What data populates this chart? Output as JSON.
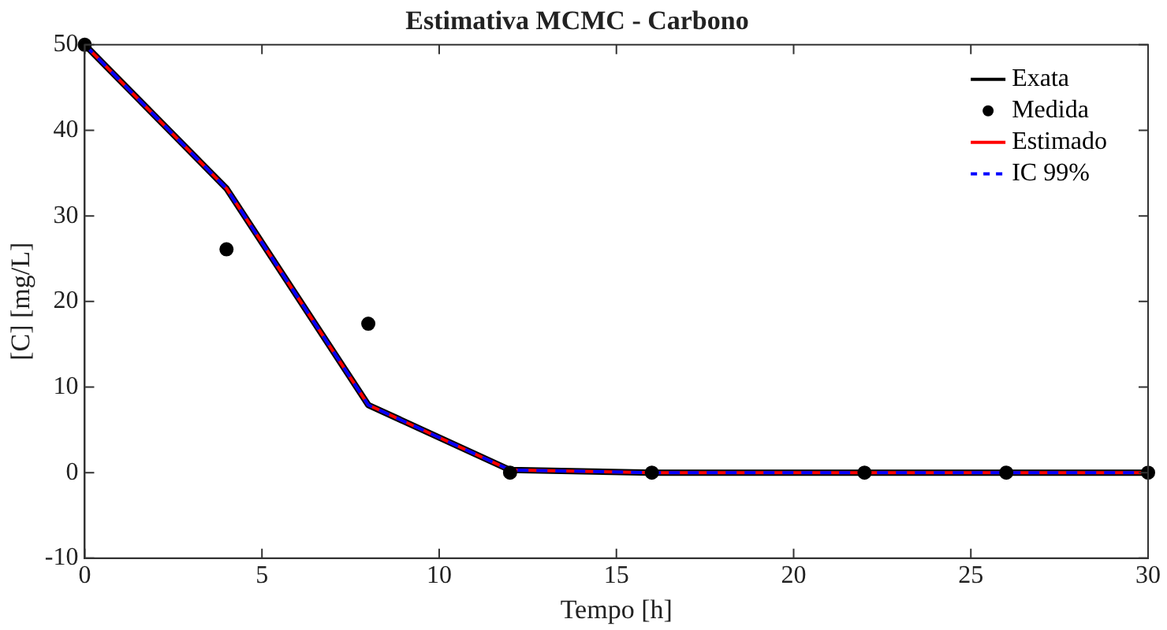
{
  "chart_data": {
    "type": "line",
    "title": "Estimativa MCMC - Carbono",
    "xlabel": "Tempo [h]",
    "ylabel": "[C] [mg/L]",
    "x": [
      0,
      4,
      8,
      12,
      16,
      22,
      26,
      30
    ],
    "series": [
      {
        "name": "Exata",
        "color": "#000000",
        "marker": "none",
        "line_style": "solid",
        "values": [
          50,
          33.2,
          7.9,
          0.3,
          0,
          0,
          0,
          0
        ]
      },
      {
        "name": "Medida",
        "type": "scatter",
        "color": "#000000",
        "marker": "circle",
        "values": [
          50,
          26.1,
          17.4,
          0,
          0,
          0,
          0,
          0
        ]
      },
      {
        "name": "Estimado",
        "color": "#ff0000",
        "marker": "none",
        "line_style": "solid",
        "values": [
          50,
          33.2,
          7.9,
          0.3,
          0,
          0,
          0,
          0
        ]
      },
      {
        "name": "IC 99%",
        "color": "#0000ff",
        "marker": "none",
        "line_style": "dashed",
        "values": [
          50,
          33.2,
          7.9,
          0.3,
          0,
          0,
          0,
          0
        ]
      }
    ],
    "xlim": [
      0,
      30
    ],
    "xticks": [
      0,
      5,
      10,
      15,
      20,
      25,
      30
    ],
    "ylim": [
      -10,
      50
    ],
    "yticks": [
      -10,
      0,
      10,
      20,
      30,
      40,
      50
    ],
    "grid": false,
    "legend": "top right"
  }
}
